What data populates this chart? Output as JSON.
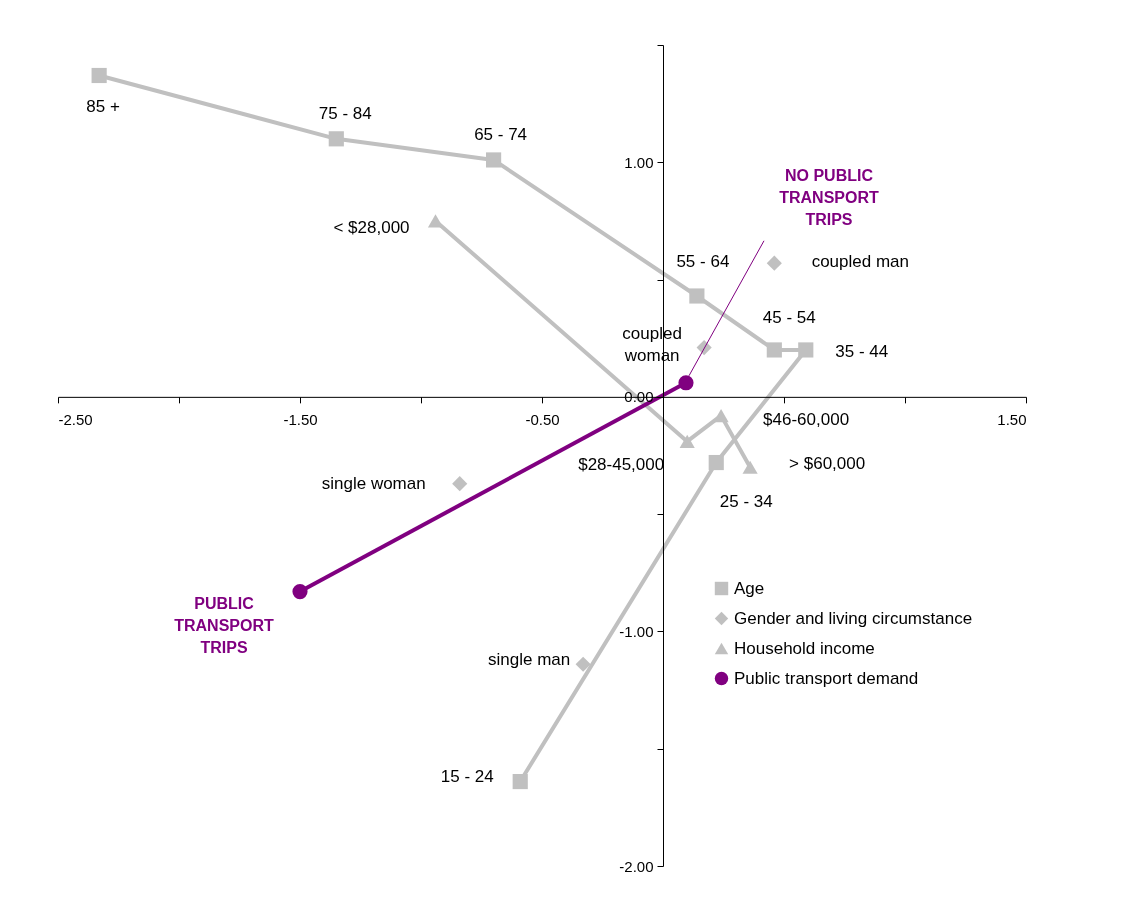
{
  "chart_data": {
    "type": "line",
    "xlim": [
      -2.5,
      1.5
    ],
    "xticks": [
      {
        "value": -2.5,
        "label": "-2.50"
      },
      {
        "value": -2,
        "label": null
      },
      {
        "value": -1.5,
        "label": "-1.50"
      },
      {
        "value": -1,
        "label": null
      },
      {
        "value": -0.5,
        "label": "-0.50"
      },
      {
        "value": 0.5,
        "label": null
      },
      {
        "value": 1,
        "label": null
      },
      {
        "value": 1.5,
        "label": "1.50"
      }
    ],
    "ylim": [
      -2.0,
      1.5
    ],
    "yticks": [
      {
        "value": -2,
        "label": "-2.00"
      },
      {
        "value": -1.5,
        "label": null
      },
      {
        "value": -1,
        "label": "-1.00"
      },
      {
        "value": -0.5,
        "label": null
      },
      {
        "value": 0,
        "label": "0.00"
      },
      {
        "value": 0.5,
        "label": null
      },
      {
        "value": 1,
        "label": "1.00"
      },
      {
        "value": 1.5,
        "label": null
      }
    ],
    "grid": false,
    "legend": "bottom right",
    "series": [
      {
        "name": "Age",
        "marker": "square",
        "color": "#c0c0c0",
        "x": [
          -2.33,
          -1.35,
          -0.7,
          0.14,
          0.46,
          0.59,
          0.22,
          -0.59
        ],
        "values": [
          1.37,
          1.1,
          1.01,
          0.43,
          0.2,
          0.2,
          -0.28,
          -1.64
        ]
      },
      {
        "name": "Gender and living circumstance",
        "type": "scatter",
        "marker": "diamond",
        "color": "#c0c0c0",
        "x": [
          0.46,
          0.17,
          -0.84,
          -0.33
        ],
        "values": [
          0.57,
          0.21,
          -0.37,
          -1.14
        ]
      },
      {
        "name": "Household income",
        "marker": "triangle",
        "color": "#c0c0c0",
        "x": [
          -0.94,
          0.1,
          0.24,
          0.36
        ],
        "values": [
          0.75,
          -0.19,
          -0.08,
          -0.3
        ]
      },
      {
        "name": "Public transport demand",
        "marker": "circle",
        "color": "#800080",
        "x": [
          -1.5,
          0.095
        ],
        "values": [
          -0.83,
          0.06
        ]
      }
    ],
    "annotations": [
      {
        "text": "85 +",
        "x": -2.33,
        "y": 1.37
      },
      {
        "text": "75 - 84",
        "x": -1.35,
        "y": 1.1
      },
      {
        "text": "65 - 74",
        "x": -0.7,
        "y": 1.01
      },
      {
        "text": "55 - 64",
        "x": 0.14,
        "y": 0.43
      },
      {
        "text": "45 - 54",
        "x": 0.46,
        "y": 0.2
      },
      {
        "text": "35 - 44",
        "x": 0.59,
        "y": 0.2
      },
      {
        "text": "25 - 34",
        "x": 0.22,
        "y": -0.28
      },
      {
        "text": "15 - 24",
        "x": -0.59,
        "y": -1.64
      },
      {
        "text": "coupled man",
        "x": 0.46,
        "y": 0.57
      },
      {
        "text": "coupled woman",
        "x": 0.17,
        "y": 0.21
      },
      {
        "text": "single woman",
        "x": -0.84,
        "y": -0.37
      },
      {
        "text": "single man",
        "x": -0.33,
        "y": -1.14
      },
      {
        "text": "< $28,000",
        "x": -0.94,
        "y": 0.75
      },
      {
        "text": "$28-45,000",
        "x": 0.1,
        "y": -0.19
      },
      {
        "text": "$46-60,000",
        "x": 0.24,
        "y": -0.08
      },
      {
        "text": "> $60,000",
        "x": 0.36,
        "y": -0.3
      },
      {
        "text": "PUBLIC TRANSPORT TRIPS",
        "x": -1.5,
        "y": -0.83
      },
      {
        "text": "NO PUBLIC TRANSPORT TRIPS",
        "x": 0.095,
        "y": 0.06
      }
    ]
  }
}
